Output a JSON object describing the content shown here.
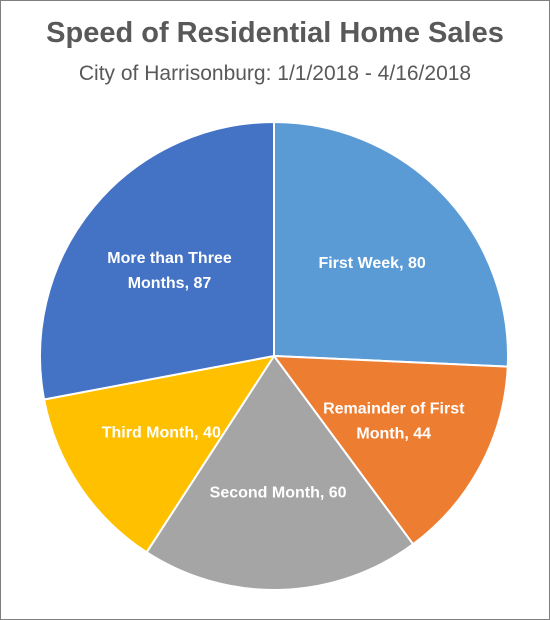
{
  "chart_data": {
    "type": "pie",
    "title": "Speed of Residential Home Sales",
    "subtitle": "City of Harrisonburg: 1/1/2018 - 4/16/2018",
    "slices": [
      {
        "label": "First Week",
        "value": 80,
        "color": "#5b9bd5",
        "label_lines": [
          "First Week, 80"
        ]
      },
      {
        "label": "Remainder of First Month",
        "value": 44,
        "color": "#ed7d31",
        "label_lines": [
          "Remainder of First",
          "Month, 44"
        ]
      },
      {
        "label": "Second Month",
        "value": 60,
        "color": "#a5a5a5",
        "label_lines": [
          "Second Month, 60"
        ]
      },
      {
        "label": "Third Month",
        "value": 40,
        "color": "#ffc000",
        "label_lines": [
          "Third Month, 40"
        ]
      },
      {
        "label": "More than Three Months",
        "value": 87,
        "color": "#4472c4",
        "label_lines": [
          "More than Three",
          "Months, 87"
        ]
      }
    ]
  }
}
